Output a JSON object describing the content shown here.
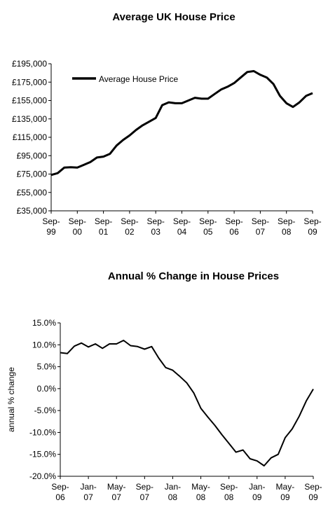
{
  "chart_data": [
    {
      "type": "line",
      "title": "Average UK House Price",
      "xlabel": "",
      "ylabel": "",
      "ylim": [
        35000,
        195000
      ],
      "y_ticks": [
        "£35,000",
        "£55,000",
        "£75,000",
        "£95,000",
        "£115,000",
        "£135,000",
        "£155,000",
        "£175,000",
        "£195,000"
      ],
      "x_ticks": [
        [
          "Sep-",
          "99"
        ],
        [
          "Sep-",
          "00"
        ],
        [
          "Sep-",
          "01"
        ],
        [
          "Sep-",
          "02"
        ],
        [
          "Sep-",
          "03"
        ],
        [
          "Sep-",
          "04"
        ],
        [
          "Sep-",
          "05"
        ],
        [
          "Sep-",
          "06"
        ],
        [
          "Sep-",
          "07"
        ],
        [
          "Sep-",
          "08"
        ],
        [
          "Sep-",
          "09"
        ]
      ],
      "legend": "top-left",
      "series": [
        {
          "name": "Average House Price",
          "color": "#000000",
          "points": [
            [
              "1999-09",
              74000
            ],
            [
              "1999-12",
              76000
            ],
            [
              "2000-03",
              82000
            ],
            [
              "2000-06",
              82500
            ],
            [
              "2000-09",
              82000
            ],
            [
              "2000-12",
              85000
            ],
            [
              "2001-03",
              88000
            ],
            [
              "2001-06",
              93000
            ],
            [
              "2001-09",
              94000
            ],
            [
              "2001-12",
              97000
            ],
            [
              "2002-03",
              106000
            ],
            [
              "2002-06",
              112000
            ],
            [
              "2002-09",
              117000
            ],
            [
              "2002-12",
              123000
            ],
            [
              "2003-03",
              128000
            ],
            [
              "2003-06",
              132000
            ],
            [
              "2003-09",
              136000
            ],
            [
              "2003-12",
              150000
            ],
            [
              "2004-03",
              153000
            ],
            [
              "2004-06",
              152000
            ],
            [
              "2004-09",
              152000
            ],
            [
              "2004-12",
              155000
            ],
            [
              "2005-03",
              158000
            ],
            [
              "2005-06",
              157000
            ],
            [
              "2005-09",
              157000
            ],
            [
              "2005-12",
              162000
            ],
            [
              "2006-03",
              167000
            ],
            [
              "2006-06",
              170000
            ],
            [
              "2006-09",
              174000
            ],
            [
              "2006-12",
              180000
            ],
            [
              "2007-03",
              186000
            ],
            [
              "2007-06",
              187000
            ],
            [
              "2007-09",
              183000
            ],
            [
              "2007-12",
              180000
            ],
            [
              "2008-03",
              173000
            ],
            [
              "2008-06",
              160000
            ],
            [
              "2008-09",
              152000
            ],
            [
              "2008-12",
              148000
            ],
            [
              "2009-03",
              153000
            ],
            [
              "2009-06",
              160000
            ],
            [
              "2009-09",
              163000
            ]
          ]
        }
      ]
    },
    {
      "type": "line",
      "title": "Annual % Change in House Prices",
      "xlabel": "",
      "ylabel": "annual % change",
      "ylim": [
        -20,
        15
      ],
      "y_ticks": [
        "-20.0%",
        "-15.0%",
        "-10.0%",
        "-5.0%",
        "0.0%",
        "5.0%",
        "10.0%",
        "15.0%"
      ],
      "x_ticks": [
        [
          "Sep-",
          "06"
        ],
        [
          "Jan-",
          "07"
        ],
        [
          "May-",
          "07"
        ],
        [
          "Sep-",
          "07"
        ],
        [
          "Jan-",
          "08"
        ],
        [
          "May-",
          "08"
        ],
        [
          "Sep-",
          "08"
        ],
        [
          "Jan-",
          "09"
        ],
        [
          "May-",
          "09"
        ],
        [
          "Sep-",
          "09"
        ]
      ],
      "series": [
        {
          "name": "",
          "color": "#000000",
          "points": [
            [
              "2006-09",
              8.2
            ],
            [
              "2006-10",
              8.0
            ],
            [
              "2006-11",
              9.7
            ],
            [
              "2006-12",
              10.4
            ],
            [
              "2007-01",
              9.5
            ],
            [
              "2007-02",
              10.2
            ],
            [
              "2007-03",
              9.2
            ],
            [
              "2007-04",
              10.2
            ],
            [
              "2007-05",
              10.2
            ],
            [
              "2007-06",
              11.0
            ],
            [
              "2007-07",
              9.8
            ],
            [
              "2007-08",
              9.6
            ],
            [
              "2007-09",
              9.0
            ],
            [
              "2007-10",
              9.6
            ],
            [
              "2007-11",
              7.0
            ],
            [
              "2007-12",
              4.8
            ],
            [
              "2008-01",
              4.2
            ],
            [
              "2008-02",
              2.8
            ],
            [
              "2008-03",
              1.3
            ],
            [
              "2008-04",
              -1.0
            ],
            [
              "2008-05",
              -4.5
            ],
            [
              "2008-06",
              -6.5
            ],
            [
              "2008-07",
              -8.4
            ],
            [
              "2008-08",
              -10.5
            ],
            [
              "2008-09",
              -12.5
            ],
            [
              "2008-10",
              -14.5
            ],
            [
              "2008-11",
              -14.0
            ],
            [
              "2008-12",
              -16.0
            ],
            [
              "2009-01",
              -16.5
            ],
            [
              "2009-02",
              -17.6
            ],
            [
              "2009-03",
              -15.8
            ],
            [
              "2009-04",
              -15.0
            ],
            [
              "2009-05",
              -11.2
            ],
            [
              "2009-06",
              -9.2
            ],
            [
              "2009-07",
              -6.3
            ],
            [
              "2009-08",
              -2.8
            ],
            [
              "2009-09",
              -0.1
            ]
          ]
        }
      ]
    }
  ]
}
